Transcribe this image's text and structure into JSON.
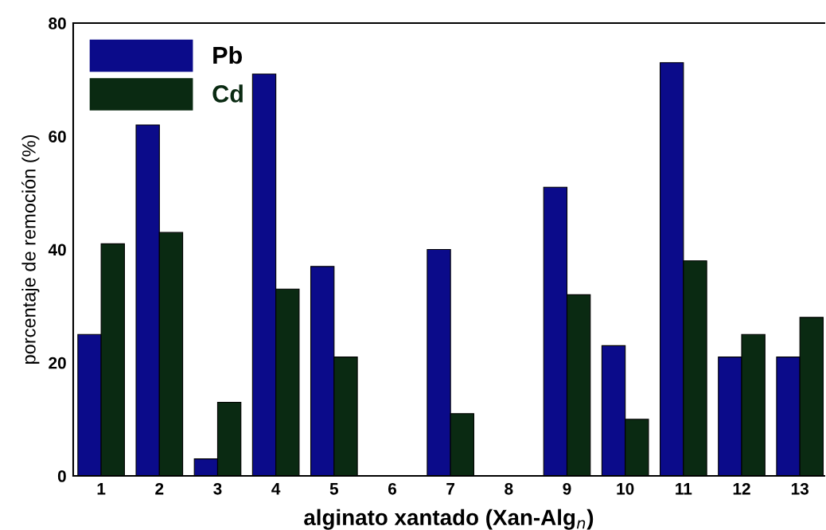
{
  "chart_data": {
    "type": "bar",
    "xlabel": "alginato xantado (Xan-Alg$_{n}$)",
    "ylabel": "porcentaje de remoción (%)",
    "categories": [
      "1",
      "2",
      "3",
      "4",
      "5",
      "6",
      "7",
      "8",
      "9",
      "10",
      "11",
      "12",
      "13"
    ],
    "series": [
      {
        "name": "Pb",
        "color": "#0b0b8a",
        "values": [
          25,
          62,
          3,
          71,
          37,
          0,
          40,
          0,
          51,
          23,
          73,
          21,
          21
        ]
      },
      {
        "name": "Cd",
        "color": "#0a2a12",
        "values": [
          41,
          43,
          13,
          33,
          21,
          0,
          11,
          0,
          32,
          10,
          38,
          25,
          28
        ]
      }
    ],
    "ylim": [
      0,
      80
    ],
    "yticks": [
      0,
      20,
      40,
      60,
      80
    ],
    "grid": false,
    "legend": "top left"
  }
}
